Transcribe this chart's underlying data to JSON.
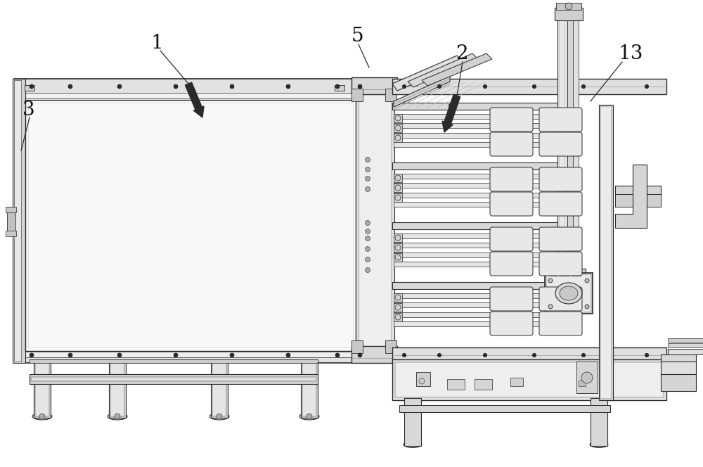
{
  "bg_color": "#ffffff",
  "lc": "#2a2a2a",
  "figsize": [
    10.0,
    6.64
  ],
  "dpi": 100
}
